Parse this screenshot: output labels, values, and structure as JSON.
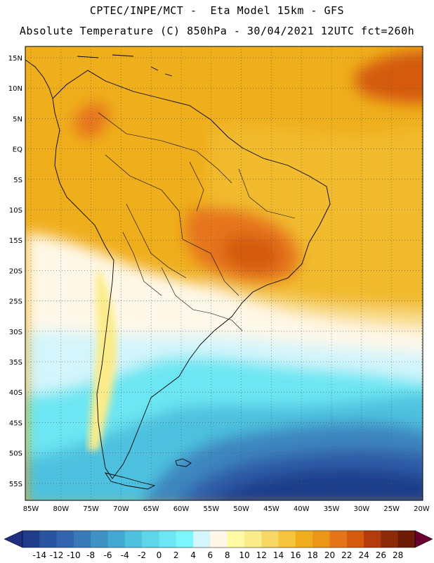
{
  "header": {
    "line1": "CPTEC/INPE/MCT -  Eta Model 15km - GFS",
    "line2": "Absolute Temperature (C) 850hPa - 30/04/2021 12UTC fct=260h"
  },
  "axes": {
    "lat_labels": [
      "15N",
      "10N",
      "5N",
      "EQ",
      "5S",
      "10S",
      "15S",
      "20S",
      "25S",
      "30S",
      "35S",
      "40S",
      "45S",
      "50S",
      "55S"
    ],
    "lon_labels": [
      "85W",
      "80W",
      "75W",
      "70W",
      "65W",
      "60W",
      "55W",
      "50W",
      "45W",
      "40W",
      "35W",
      "30W",
      "25W",
      "20W"
    ]
  },
  "colorbar": {
    "labels": [
      "-14",
      "-12",
      "-10",
      "-8",
      "-6",
      "-4",
      "-2",
      "0",
      "2",
      "4",
      "6",
      "8",
      "10",
      "12",
      "14",
      "16",
      "18",
      "20",
      "22",
      "24",
      "26",
      "28"
    ],
    "colors": [
      "#1f3d8a",
      "#2b54a0",
      "#3265ad",
      "#3a7ab9",
      "#3f92c4",
      "#44a9d2",
      "#4ec1df",
      "#5dd6ea",
      "#6ce6f2",
      "#7cf5fb",
      "#d3f5fb",
      "#fff8e8",
      "#fffaa6",
      "#fbec8a",
      "#f7d766",
      "#f3c43c",
      "#efae1c",
      "#eb9618",
      "#e6751a",
      "#d45a10",
      "#b43c0c",
      "#8c2a0a",
      "#6e1c08"
    ],
    "under_color": "#1f3080",
    "over_color": "#6a0030"
  },
  "map": {
    "colors": {
      "deep_blue": "#1f3d8a",
      "blue": "#2e5ca8",
      "mid_blue": "#3d86c0",
      "light_blue": "#4ec1df",
      "cyan": "#6ce6f2",
      "pale_cyan": "#d3f5fb",
      "cream": "#fff8e8",
      "yellow": "#fbec8a",
      "gold": "#f3c43c",
      "orange": "#efae1c",
      "dark_orange": "#e6751a",
      "red_orange": "#d45a10"
    }
  }
}
